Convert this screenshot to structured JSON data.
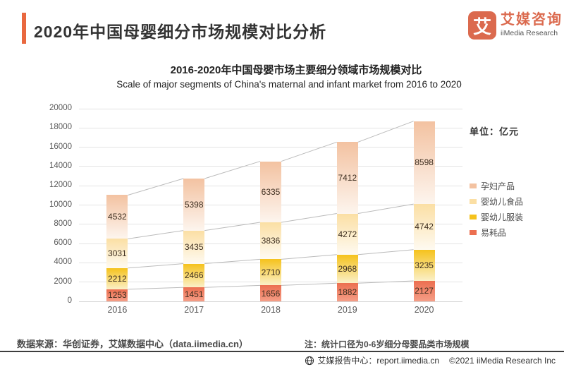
{
  "header": {
    "title": "2020年中国母婴细分市场规模对比分析",
    "logo": {
      "mark": "艾",
      "name_cn": "艾媒咨询",
      "name_en": "iiMedia Research"
    }
  },
  "chart": {
    "title": "2016-2020年中国母婴市场主要细分领域市场规模对比",
    "subtitle": "Scale of major segments of China's maternal and infant market from 2016 to 2020",
    "unit_label": "单位：亿元"
  },
  "chart_data": {
    "type": "bar",
    "stacked": true,
    "data_labels": true,
    "series_lines": true,
    "legend_position": "right",
    "categories": [
      "2016",
      "2017",
      "2018",
      "2019",
      "2020"
    ],
    "series": [
      {
        "name": "易耗品",
        "values": [
          1253,
          1451,
          1656,
          1882,
          2127
        ],
        "color": "#EC6F50",
        "fade": "#F59E87"
      },
      {
        "name": "婴幼儿服装",
        "values": [
          2212,
          2466,
          2710,
          2968,
          3235
        ],
        "color": "#F5C21C",
        "fade": "#FBF0C8"
      },
      {
        "name": "婴幼儿食品",
        "values": [
          3031,
          3435,
          3836,
          4272,
          4742
        ],
        "color": "#FBDFA4",
        "fade": "#FEFAF1"
      },
      {
        "name": "孕妇产品",
        "values": [
          4532,
          5398,
          6335,
          7412,
          8598
        ],
        "color": "#F3C2A1",
        "fade": "#FDF5EE"
      }
    ],
    "ylim": [
      0,
      20000
    ],
    "yticks": [
      0,
      2000,
      4000,
      6000,
      8000,
      10000,
      12000,
      14000,
      16000,
      18000,
      20000
    ],
    "xlabel": "",
    "ylabel": ""
  },
  "footer": {
    "source": "数据来源：华创证券，艾媒数据中心（data.iimedia.cn）",
    "note": "注：统计口径为0-6岁细分母婴品类市场规模",
    "report_center": "艾媒报告中心：report.iimedia.cn",
    "copyright": "©2021  iiMedia Research  Inc"
  },
  "colors": {
    "accent": "#E9683F",
    "logo": "#DB6A4E",
    "gridline": "#E3E3E3",
    "series_line": "#BBBBBB"
  }
}
